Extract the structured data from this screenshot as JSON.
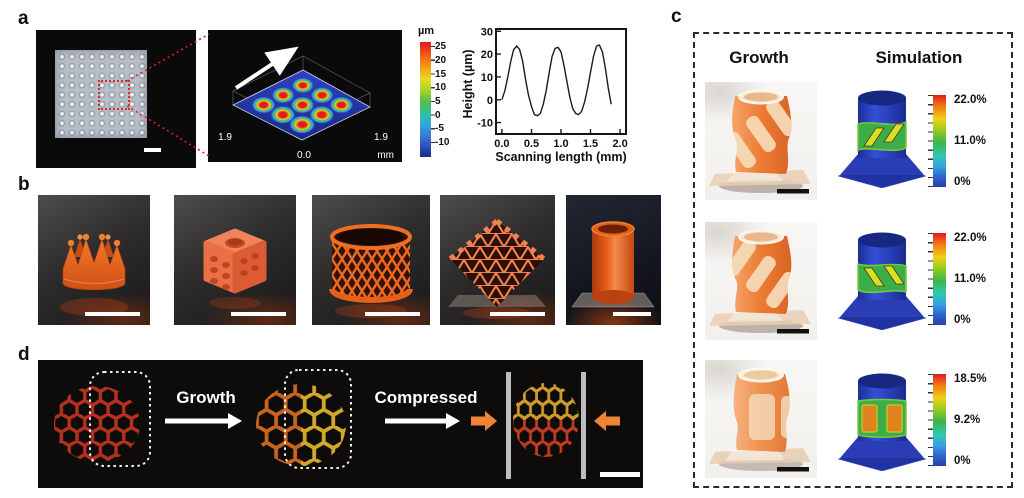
{
  "panels": {
    "a": "a",
    "b": "b",
    "c": "c",
    "d": "d"
  },
  "panel_a": {
    "surface": {
      "left_axis_label": "1.9",
      "right_axis_label": "1.9",
      "origin_label": "0.0",
      "unit_label": "mm"
    },
    "colorbar": {
      "title": "µm",
      "ticks": [
        "25",
        "20",
        "15",
        "10",
        "5",
        "0",
        "-5",
        "-10"
      ]
    }
  },
  "panel_b": {
    "items": [
      "crown",
      "dice",
      "mesh-cylinder",
      "lattice-cube",
      "tube-on-plate"
    ]
  },
  "panel_c": {
    "headers": [
      "Growth",
      "Simulation"
    ],
    "rows": [
      {
        "colorbar_labels": [
          "22.0%",
          "11.0%",
          "0%"
        ]
      },
      {
        "colorbar_labels": [
          "22.0%",
          "11.0%",
          "0%"
        ]
      },
      {
        "colorbar_labels": [
          "18.5%",
          "9.2%",
          "0%"
        ]
      }
    ]
  },
  "panel_d": {
    "growth_label": "Growth",
    "compressed_label": "Compressed"
  },
  "colors": {
    "object_orange": "#e8641c",
    "simulation_blue": "#2b3fae",
    "strain_green": "#3fae4a",
    "strain_yellow": "#d9d926",
    "strain_orange": "#e2841e",
    "honeycomb_red": "#b5301f",
    "honeycomb_orange": "#c9641f",
    "honeycomb_yellow": "#d2a82a",
    "annotation_red": "#d42020"
  },
  "chart_data": {
    "type": "line",
    "title": "",
    "xlabel": "Scanning length (mm)",
    "ylabel": "Height (µm)",
    "xlim": [
      -0.1,
      2.1
    ],
    "ylim": [
      -15,
      31
    ],
    "xticks": [
      0.0,
      0.5,
      1.0,
      1.5,
      2.0
    ],
    "xtick_labels": [
      "0.0",
      "0.5",
      "1.0",
      "1.5",
      "2.0"
    ],
    "yticks": [
      30,
      20,
      10,
      0,
      -10
    ],
    "ytick_labels": [
      "30",
      "20",
      "10",
      "0",
      "-10"
    ],
    "grid": false,
    "legend": "none",
    "series": [
      {
        "name": "height-profile",
        "x": [
          0,
          0.05,
          0.1,
          0.15,
          0.2,
          0.25,
          0.3,
          0.35,
          0.4,
          0.45,
          0.5,
          0.55,
          0.6,
          0.65,
          0.7,
          0.75,
          0.8,
          0.85,
          0.9,
          0.95,
          1.0,
          1.05,
          1.1,
          1.15,
          1.2,
          1.25,
          1.3,
          1.35,
          1.4,
          1.45,
          1.5,
          1.55,
          1.6,
          1.65,
          1.7,
          1.75,
          1.8,
          1.85
        ],
        "y": [
          0,
          4,
          10,
          17,
          22,
          23.5,
          22,
          17,
          9,
          2,
          -3,
          -6.5,
          -7,
          -6,
          -2,
          4,
          12,
          19,
          22.5,
          23,
          21,
          15,
          8,
          1,
          -4,
          -6,
          -6.5,
          -5,
          -1,
          5,
          12,
          19,
          23.5,
          24,
          21,
          14,
          5,
          -2
        ]
      }
    ]
  }
}
